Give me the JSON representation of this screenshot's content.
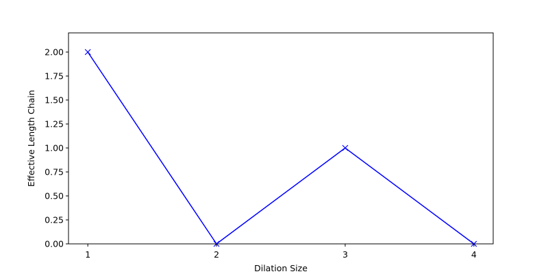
{
  "chart_data": {
    "type": "line",
    "title": "",
    "xlabel": "Dilation Size",
    "ylabel": "Effective Length Chain",
    "x": [
      1,
      2,
      3,
      4
    ],
    "xticks": [
      "1",
      "2",
      "3",
      "4"
    ],
    "yticks": [
      "0.00",
      "0.25",
      "0.50",
      "0.75",
      "1.00",
      "1.25",
      "1.50",
      "1.75",
      "2.00"
    ],
    "ylim": [
      0,
      2.2
    ],
    "xlim": [
      0.85,
      4.15
    ],
    "grid": false,
    "series": [
      {
        "values": [
          2.0,
          0.0,
          1.0,
          0.0
        ],
        "color": "#0000ff",
        "marker": "x"
      }
    ]
  }
}
